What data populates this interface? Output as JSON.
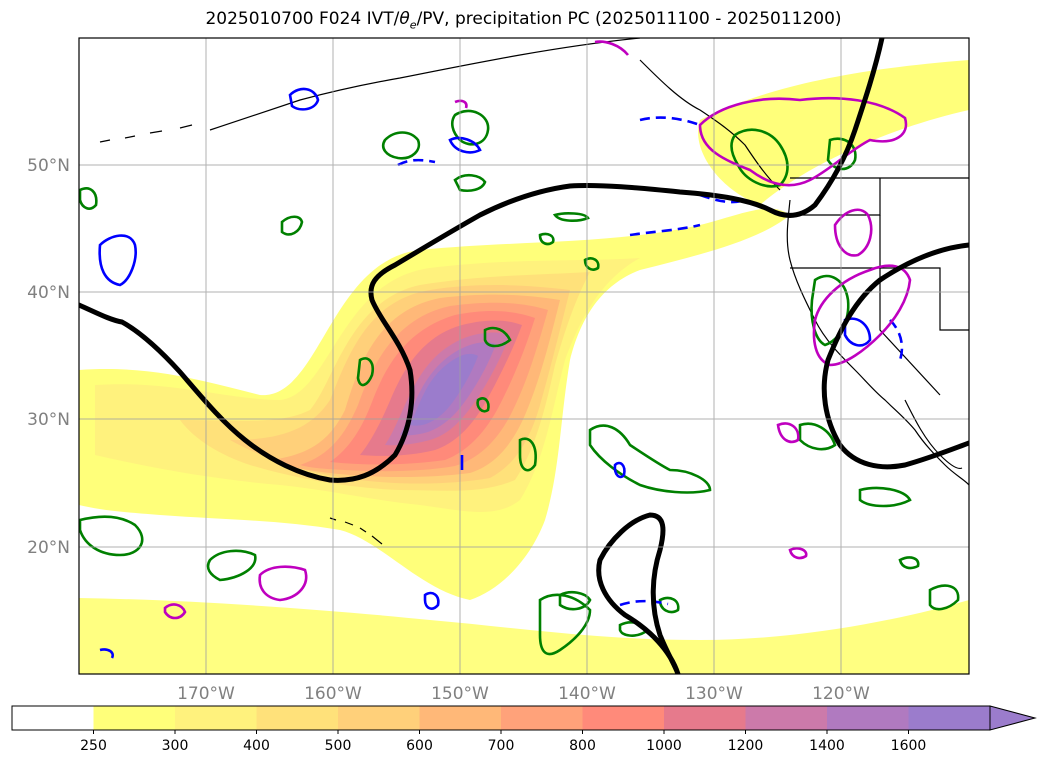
{
  "title": "2025010700 F024 IVT/θe/PV, precipitation PC (2025011100 - 2025011200)",
  "title_parts": {
    "prefix": "2025010700 F024 IVT/",
    "theta": "θ",
    "theta_sub": "e",
    "suffix": "/PV, precipitation PC (2025011100 - 2025011200)"
  },
  "map": {
    "lon_range": [
      -180,
      -110
    ],
    "lat_range": [
      10,
      60
    ],
    "lat_ticks": [
      "50°N",
      "40°N",
      "30°N",
      "20°N"
    ],
    "lon_ticks": [
      "170°W",
      "160°W",
      "150°W",
      "140°W",
      "130°W",
      "120°W"
    ],
    "gridlines": true
  },
  "colorbar": {
    "levels": [
      "250",
      "300",
      "400",
      "500",
      "600",
      "700",
      "800",
      "1000",
      "1200",
      "1400",
      "1600"
    ],
    "colors": [
      "#ffffff",
      "#ffff7a",
      "#fff27d",
      "#ffe17a",
      "#ffd07a",
      "#ffb878",
      "#ffa27a",
      "#ff8a7a",
      "#e67a8c",
      "#cc7aaa",
      "#b07ac0",
      "#9b7ccc"
    ],
    "extend": "max"
  },
  "legend_colors": {
    "pv_contour": "#000000",
    "theta_e_positive": "#008000",
    "theta_e_negative": "#0000ff",
    "precip_pc": "#bf00bf"
  }
}
